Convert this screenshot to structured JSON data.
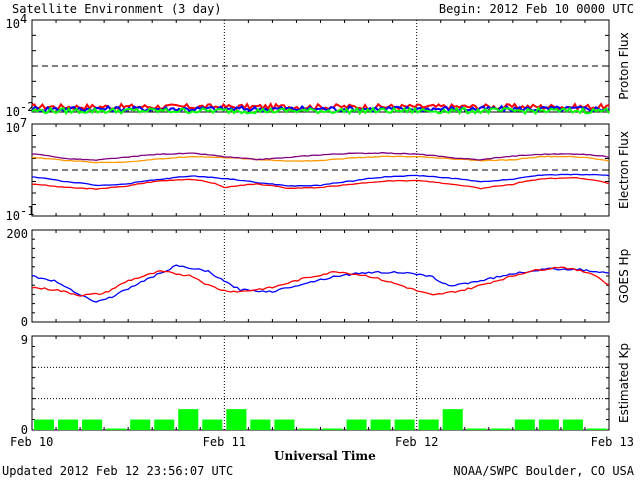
{
  "header": {
    "title": "Satellite Environment (3 day)",
    "begin": "Begin:  2012 Feb 10 0000 UTC"
  },
  "footer": {
    "updated": "Updated 2012 Feb 12 23:56:07 UTC",
    "credit": "NOAA/SWPC Boulder, CO USA"
  },
  "chart_data": [
    {
      "type": "line",
      "panel": "proton",
      "ylabel": "Proton Flux",
      "scale": "log",
      "y_tick_labels": [
        {
          "base": "10",
          "exp": "4"
        },
        {
          "base": "10",
          "exp": "-2"
        }
      ],
      "ylim": [
        0.01,
        10000
      ],
      "threshold": 10,
      "series": [
        {
          "color": "#ff0000",
          "level": 0.022
        },
        {
          "color": "#0000ff",
          "level": 0.016
        },
        {
          "color": "#00ff00",
          "level": 0.012
        }
      ]
    },
    {
      "type": "line",
      "panel": "electron",
      "ylabel": "Electron Flux",
      "scale": "log",
      "y_tick_labels": [
        {
          "base": "10",
          "exp": "7"
        },
        {
          "base": "10",
          "exp": "-1"
        }
      ],
      "ylim": [
        0.1,
        10000000
      ],
      "threshold": 1000,
      "series": [
        {
          "color": "#ff9900",
          "x": [
            0,
            4,
            8,
            12,
            16,
            20,
            24,
            28,
            32,
            36,
            40,
            44,
            48,
            52,
            56,
            60,
            64,
            68,
            72
          ],
          "y": [
            12000,
            7000,
            4500,
            5000,
            9000,
            15000,
            12000,
            8000,
            6000,
            6500,
            11000,
            15000,
            14000,
            9500,
            6500,
            7500,
            15000,
            14000,
            6000
          ]
        },
        {
          "color": "#800080",
          "x": [
            0,
            4,
            8,
            12,
            16,
            20,
            24,
            28,
            32,
            36,
            40,
            44,
            48,
            52,
            56,
            60,
            64,
            68,
            72
          ],
          "y": [
            25000,
            10000,
            7000,
            13000,
            24000,
            28000,
            14000,
            8000,
            12000,
            21000,
            28000,
            30000,
            24000,
            12000,
            7500,
            16000,
            24000,
            25000,
            14000
          ]
        },
        {
          "color": "#0000ff",
          "x": [
            0,
            4,
            8,
            12,
            16,
            20,
            24,
            28,
            32,
            36,
            40,
            44,
            48,
            52,
            56,
            60,
            64,
            68,
            72
          ],
          "y": [
            250,
            100,
            45,
            60,
            150,
            300,
            180,
            80,
            40,
            45,
            110,
            250,
            330,
            200,
            90,
            160,
            380,
            420,
            350
          ]
        },
        {
          "color": "#ff0000",
          "x": [
            0,
            4,
            8,
            12,
            16,
            20,
            24,
            28,
            32,
            36,
            40,
            44,
            48,
            52,
            56,
            60,
            64,
            68,
            72
          ],
          "y": [
            60,
            30,
            22,
            40,
            110,
            150,
            30,
            60,
            25,
            30,
            55,
            110,
            120,
            60,
            25,
            55,
            180,
            210,
            60
          ]
        }
      ]
    },
    {
      "type": "line",
      "panel": "hp",
      "ylabel": "GOES Hp",
      "scale": "linear",
      "y_ticks": [
        "200",
        "0"
      ],
      "ylim": [
        0,
        200
      ],
      "series": [
        {
          "color": "#0000ff",
          "x": [
            0,
            3,
            6,
            8,
            10,
            14,
            18,
            22,
            24,
            26,
            30,
            34,
            38,
            42,
            46,
            50,
            52,
            56,
            60,
            64,
            68,
            72
          ],
          "y": [
            100,
            88,
            60,
            43,
            55,
            90,
            122,
            110,
            88,
            70,
            66,
            84,
            100,
            108,
            108,
            98,
            78,
            90,
            105,
            115,
            115,
            105
          ]
        },
        {
          "color": "#ff0000",
          "x": [
            0,
            3,
            6,
            9,
            12,
            16,
            20,
            22,
            24,
            26,
            30,
            34,
            38,
            42,
            46,
            48,
            50,
            54,
            58,
            62,
            66,
            70,
            72
          ],
          "y": [
            75,
            70,
            58,
            62,
            90,
            110,
            100,
            80,
            68,
            66,
            75,
            95,
            110,
            100,
            80,
            68,
            58,
            70,
            90,
            110,
            120,
            105,
            80
          ]
        }
      ]
    },
    {
      "type": "bar",
      "panel": "kp",
      "ylabel": "Estimated Kp",
      "scale": "linear",
      "y_ticks": [
        "9",
        "0"
      ],
      "ylim": [
        0,
        9
      ],
      "color": "#00ff00",
      "interval_hours": 3,
      "values": [
        1,
        1,
        1,
        0,
        1,
        1,
        2,
        1,
        2,
        1,
        1,
        0,
        0,
        1,
        1,
        1,
        1,
        2,
        0,
        0,
        1,
        1,
        1,
        0
      ]
    }
  ],
  "x_axis": {
    "label": "Universal Time",
    "ticks": [
      "Feb 10",
      "Feb 11",
      "Feb 12",
      "Feb 13"
    ]
  }
}
